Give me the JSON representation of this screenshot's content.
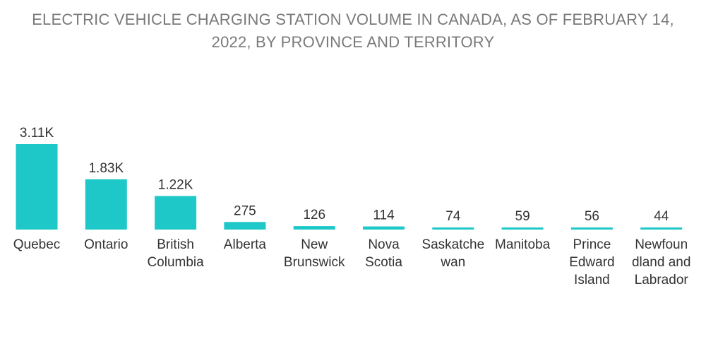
{
  "chart_data": {
    "type": "bar",
    "title": "ELECTRIC VEHICLE CHARGING STATION VOLUME IN CANADA, AS OF FEBRUARY 14, 2022, BY PROVINCE AND TERRITORY",
    "title_lines": [
      "ELECTRIC VEHICLE CHARGING STATION VOLUME IN CANADA, AS OF FEBRUARY 14,",
      "2022, BY PROVINCE AND TERRITORY"
    ],
    "categories": [
      "Quebec",
      "Ontario",
      "British Columbia",
      "Alberta",
      "New Brunswick",
      "Nova Scotia",
      "Saskatchewan",
      "Manitoba",
      "Prince Edward Island",
      "Newfoundland and Labrador"
    ],
    "category_label_lines": [
      [
        "Quebec"
      ],
      [
        "Ontario"
      ],
      [
        "British",
        "Columbia"
      ],
      [
        "Alberta"
      ],
      [
        "New",
        "Brunswick"
      ],
      [
        "Nova",
        "Scotia"
      ],
      [
        "Saskatche",
        "wan"
      ],
      [
        "Manitoba"
      ],
      [
        "Prince",
        "Edward",
        "Island"
      ],
      [
        "Newfoun",
        "dland and",
        "Labrador"
      ]
    ],
    "values": [
      3110,
      1830,
      1220,
      275,
      126,
      114,
      74,
      59,
      56,
      44
    ],
    "value_labels": [
      "3.11K",
      "1.83K",
      "1.22K",
      "275",
      "126",
      "114",
      "74",
      "59",
      "56",
      "44"
    ],
    "xlabel": "",
    "ylabel": "",
    "ylim": [
      0,
      3110
    ],
    "grid": false,
    "legend": "none",
    "bar_color": "#1ec8c8"
  }
}
